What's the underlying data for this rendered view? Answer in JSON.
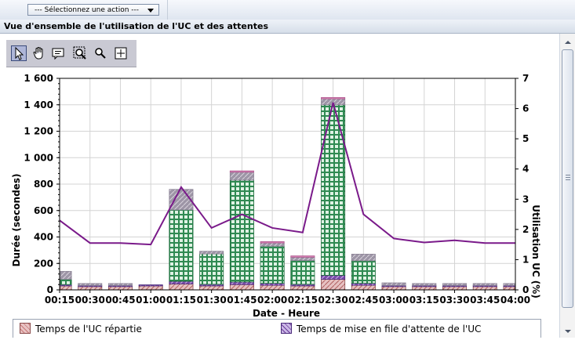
{
  "header": {
    "action_select": "--- Sélectionnez une action ---"
  },
  "panel": {
    "title": "Vue d'ensemble de l'utilisation de l'UC et des attentes"
  },
  "chart_tools": [
    {
      "name": "select-tool",
      "icon": "pointer-icon",
      "active": true
    },
    {
      "name": "pan-tool",
      "icon": "hand-icon",
      "active": false
    },
    {
      "name": "tooltip-tool",
      "icon": "comment-icon",
      "active": false
    },
    {
      "name": "zoom-in-tool",
      "icon": "zoom-in-icon",
      "active": false
    },
    {
      "name": "zoom-out-tool",
      "icon": "zoom-out-icon",
      "active": false
    },
    {
      "name": "crosshair-tool",
      "icon": "crosshair-icon",
      "active": false
    }
  ],
  "legend": {
    "items": [
      {
        "label": "Temps de l'UC répartie",
        "color": "#c87070"
      },
      {
        "label": "Temps de mise en file d'attente de l'UC",
        "color": "#7040a0"
      }
    ]
  },
  "chart_data": {
    "type": "bar",
    "xlabel": "Date - Heure",
    "ylabel": "Durée (secondes)",
    "y2label": "Utilisation UC (%)",
    "ylim": [
      0,
      1600
    ],
    "y2lim": [
      0,
      7
    ],
    "yticks": [
      "0",
      "200",
      "400",
      "600",
      "800",
      "1 000",
      "1 200",
      "1 400",
      "1 600"
    ],
    "y2ticks": [
      "0",
      "1",
      "2",
      "3",
      "4",
      "5",
      "6",
      "7"
    ],
    "categories": [
      "00:15",
      "00:30",
      "00:45",
      "01:00",
      "01:15",
      "01:30",
      "01:45",
      "02:00",
      "02:15",
      "02:30",
      "02:45",
      "03:00",
      "03:15",
      "03:30",
      "03:45",
      "04:00"
    ],
    "series": [
      {
        "name": "Temps de l'UC répartie",
        "color": "#c89898",
        "values": [
          30,
          25,
          25,
          30,
          45,
          30,
          40,
          35,
          30,
          80,
          35,
          25,
          25,
          25,
          25,
          25
        ]
      },
      {
        "name": "Temps de mise en file d'attente de l'UC",
        "color": "#6a3a9a",
        "values": [
          10,
          8,
          8,
          8,
          20,
          12,
          20,
          15,
          12,
          30,
          15,
          8,
          8,
          8,
          8,
          8
        ]
      },
      {
        "values": [
          40,
          0,
          0,
          0,
          540,
          230,
          770,
          280,
          180,
          1290,
          170,
          0,
          0,
          0,
          0,
          0
        ],
        "color": "#3aa060"
      },
      {
        "values": [
          60,
          15,
          15,
          0,
          155,
          20,
          60,
          25,
          25,
          45,
          50,
          20,
          15,
          15,
          15,
          15
        ],
        "color": "#b0a8b8"
      },
      {
        "values": [
          0,
          0,
          0,
          0,
          0,
          0,
          10,
          10,
          10,
          10,
          0,
          0,
          0,
          0,
          0,
          0
        ],
        "color": "#d080b0"
      }
    ],
    "line": {
      "color": "#7a1a8a",
      "values": [
        2.3,
        1.55,
        1.55,
        1.5,
        3.4,
        2.05,
        2.5,
        2.05,
        1.9,
        6.2,
        2.5,
        1.7,
        1.57,
        1.64,
        1.55,
        1.55
      ]
    },
    "grid": true
  }
}
